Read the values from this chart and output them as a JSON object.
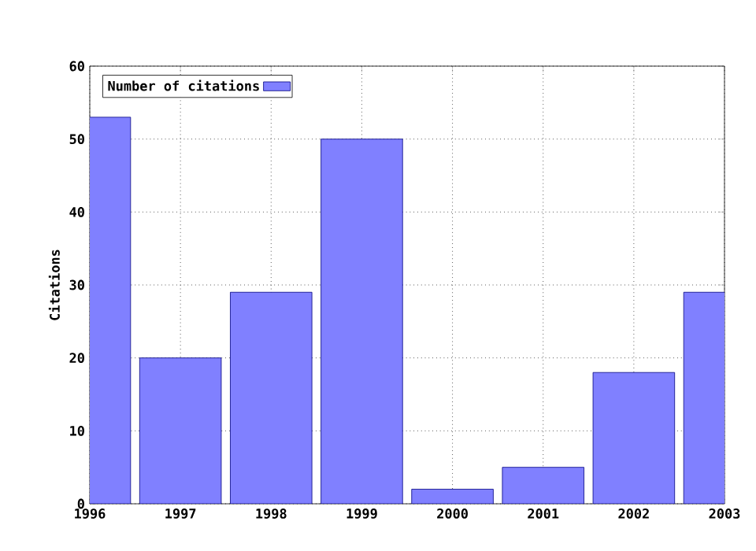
{
  "chart_data": {
    "type": "bar",
    "ylabel": "Citations",
    "x": [
      1996,
      1997,
      1998,
      1999,
      2000,
      2001,
      2002,
      2003
    ],
    "series": [
      {
        "name": "Number of citations",
        "color": "#8080ff",
        "values": [
          53,
          20,
          29,
          50,
          2,
          5,
          18,
          29
        ]
      }
    ],
    "xlim": [
      1996,
      2003
    ],
    "xticks": [
      1996,
      1997,
      1998,
      1999,
      2000,
      2001,
      2002,
      2003
    ],
    "ylim": [
      0,
      60
    ],
    "yticks": [
      0,
      10,
      20,
      30,
      40,
      50,
      60
    ],
    "grid": true,
    "legend": "top left"
  }
}
